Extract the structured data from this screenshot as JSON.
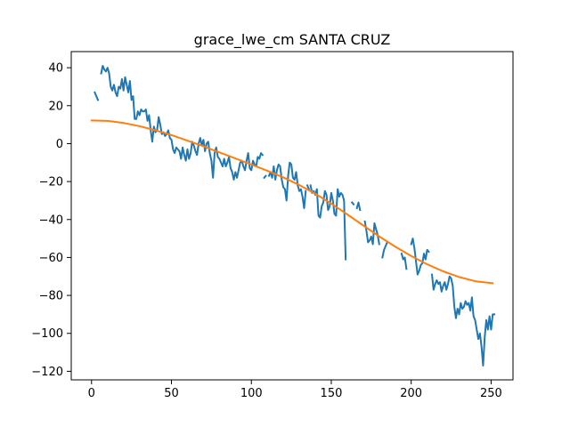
{
  "chart_data": {
    "type": "line",
    "title": "grace_lwe_cm SANTA CRUZ",
    "xlabel": "",
    "ylabel": "",
    "xlim": [
      -12.7,
      263.7
    ],
    "ylim": [
      -124.5,
      48.5
    ],
    "xticks": [
      0,
      50,
      100,
      150,
      200,
      250
    ],
    "yticks": [
      -120,
      -100,
      -80,
      -60,
      -40,
      -20,
      0,
      20,
      40
    ],
    "grid": false,
    "legend": "none",
    "series": [
      {
        "color": "#1f77b4",
        "segments": [
          [
            [
              2,
              27
            ],
            [
              4,
              23
            ]
          ],
          [
            [
              6,
              37
            ],
            [
              7,
              41
            ],
            [
              8,
              39
            ],
            [
              9,
              38
            ],
            [
              10,
              40
            ],
            [
              11,
              37
            ],
            [
              12,
              30
            ],
            [
              13,
              28
            ],
            [
              14,
              31
            ],
            [
              15,
              27
            ],
            [
              16,
              25
            ],
            [
              17,
              30
            ],
            [
              18,
              29
            ],
            [
              19,
              34
            ],
            [
              20,
              28
            ],
            [
              21,
              35
            ],
            [
              22,
              31
            ],
            [
              23,
              27
            ],
            [
              24,
              33
            ],
            [
              25,
              23
            ],
            [
              26,
              25
            ],
            [
              27,
              13
            ],
            [
              28,
              13
            ],
            [
              29,
              17
            ],
            [
              30,
              15
            ],
            [
              31,
              18
            ],
            [
              32,
              17
            ],
            [
              33,
              17
            ],
            [
              34,
              18
            ],
            [
              35,
              12
            ],
            [
              36,
              15
            ],
            [
              37,
              7
            ],
            [
              38,
              1
            ],
            [
              39,
              9
            ],
            [
              40,
              6
            ],
            [
              41,
              7
            ],
            [
              42,
              14
            ],
            [
              43,
              10
            ],
            [
              44,
              5
            ],
            [
              45,
              6
            ],
            [
              46,
              4
            ],
            [
              47,
              5
            ],
            [
              48,
              7
            ],
            [
              49,
              3
            ],
            [
              50,
              2
            ],
            [
              51,
              -3
            ],
            [
              52,
              -5
            ],
            [
              53,
              -2
            ],
            [
              54,
              -3
            ],
            [
              55,
              -4
            ],
            [
              56,
              -8
            ],
            [
              57,
              -2
            ],
            [
              58,
              -6
            ],
            [
              59,
              -9
            ],
            [
              60,
              -3
            ],
            [
              61,
              -8
            ],
            [
              62,
              -5
            ],
            [
              63,
              1
            ],
            [
              64,
              -1
            ],
            [
              65,
              -4
            ],
            [
              66,
              -6
            ],
            [
              67,
              0
            ],
            [
              68,
              3
            ],
            [
              69,
              -1
            ],
            [
              70,
              2
            ],
            [
              71,
              -4
            ],
            [
              72,
              0
            ],
            [
              73,
              1
            ],
            [
              74,
              -5
            ],
            [
              75,
              -9
            ],
            [
              76,
              -18
            ],
            [
              77,
              -5
            ],
            [
              78,
              -2
            ],
            [
              79,
              -7
            ],
            [
              80,
              -8
            ],
            [
              81,
              -10
            ],
            [
              82,
              -12
            ],
            [
              83,
              -8
            ],
            [
              84,
              -12
            ],
            [
              85,
              -10
            ],
            [
              86,
              -7
            ],
            [
              87,
              -13
            ],
            [
              88,
              -15
            ],
            [
              89,
              -19
            ],
            [
              90,
              -15
            ],
            [
              91,
              -18
            ],
            [
              92,
              -14
            ],
            [
              93,
              -10
            ],
            [
              94,
              -9
            ],
            [
              95,
              -12
            ],
            [
              96,
              -14
            ],
            [
              97,
              -9
            ],
            [
              98,
              -5
            ],
            [
              99,
              -13
            ],
            [
              100,
              -14
            ],
            [
              101,
              -9
            ],
            [
              102,
              -11
            ],
            [
              103,
              -12
            ],
            [
              104,
              -7
            ],
            [
              105,
              -8
            ],
            [
              106,
              -5
            ],
            [
              107,
              -6
            ]
          ],
          [
            [
              108,
              -18
            ],
            [
              109,
              -17
            ]
          ],
          [
            [
              111,
              -17
            ],
            [
              112,
              -15
            ],
            [
              113,
              -18
            ],
            [
              114,
              -12
            ],
            [
              115,
              -19
            ],
            [
              116,
              -14
            ],
            [
              117,
              -11
            ],
            [
              118,
              -12
            ],
            [
              119,
              -19
            ],
            [
              120,
              -23
            ],
            [
              121,
              -24
            ],
            [
              122,
              -30
            ],
            [
              123,
              -17
            ],
            [
              124,
              -10
            ],
            [
              125,
              -11
            ],
            [
              126,
              -18
            ],
            [
              127,
              -19
            ],
            [
              128,
              -15
            ],
            [
              129,
              -22
            ],
            [
              130,
              -25
            ],
            [
              131,
              -24
            ],
            [
              132,
              -28
            ],
            [
              133,
              -34
            ],
            [
              134,
              -25
            ]
          ],
          [
            [
              135,
              -22
            ],
            [
              136,
              -24
            ]
          ],
          [
            [
              137,
              -22
            ],
            [
              138,
              -26
            ],
            [
              139,
              -25
            ],
            [
              140,
              -27
            ],
            [
              141,
              -24
            ],
            [
              142,
              -38
            ],
            [
              143,
              -39
            ],
            [
              144,
              -33
            ],
            [
              145,
              -31
            ],
            [
              146,
              -25
            ],
            [
              147,
              -27
            ],
            [
              148,
              -35
            ],
            [
              149,
              -33
            ],
            [
              150,
              -26
            ],
            [
              151,
              -30
            ],
            [
              152,
              -37
            ],
            [
              153,
              -38
            ],
            [
              154,
              -24
            ],
            [
              155,
              -28
            ],
            [
              156,
              -26
            ],
            [
              157,
              -27
            ],
            [
              158,
              -30
            ],
            [
              159,
              -61
            ]
          ],
          [
            [
              163,
              -31
            ],
            [
              164,
              -32
            ]
          ],
          [
            [
              166,
              -34
            ],
            [
              167,
              -31
            ],
            [
              168,
              -35
            ]
          ],
          [
            [
              171,
              -41
            ],
            [
              172,
              -46
            ],
            [
              173,
              -52
            ],
            [
              174,
              -51
            ],
            [
              175,
              -49
            ],
            [
              176,
              -53
            ],
            [
              177,
              -42
            ],
            [
              178,
              -45
            ],
            [
              179,
              -48
            ],
            [
              180,
              -53
            ]
          ],
          [
            [
              182,
              -60
            ],
            [
              183,
              -56
            ],
            [
              184,
              -54
            ],
            [
              185,
              -52
            ]
          ],
          [
            [
              194,
              -58
            ],
            [
              195,
              -61
            ],
            [
              196,
              -60
            ],
            [
              197,
              -66
            ]
          ],
          [
            [
              200,
              -53
            ],
            [
              201,
              -50
            ],
            [
              202,
              -55
            ],
            [
              203,
              -62
            ],
            [
              204,
              -69
            ],
            [
              205,
              -67
            ],
            [
              206,
              -64
            ],
            [
              207,
              -63
            ],
            [
              208,
              -58
            ],
            [
              209,
              -61
            ],
            [
              210,
              -56
            ],
            [
              211,
              -57
            ]
          ],
          [
            [
              213,
              -69
            ],
            [
              214,
              -77
            ],
            [
              215,
              -74
            ],
            [
              216,
              -72
            ],
            [
              217,
              -74
            ],
            [
              218,
              -73
            ],
            [
              219,
              -78
            ],
            [
              220,
              -75
            ],
            [
              221,
              -73
            ],
            [
              222,
              -77
            ],
            [
              223,
              -74
            ],
            [
              224,
              -70
            ],
            [
              225,
              -71
            ],
            [
              226,
              -75
            ],
            [
              227,
              -86
            ],
            [
              228,
              -92
            ],
            [
              229,
              -87
            ],
            [
              230,
              -90
            ],
            [
              231,
              -84
            ],
            [
              232,
              -87
            ],
            [
              233,
              -86
            ],
            [
              234,
              -83
            ],
            [
              235,
              -85
            ],
            [
              236,
              -84
            ],
            [
              237,
              -88
            ],
            [
              238,
              -81
            ],
            [
              239,
              -91
            ],
            [
              240,
              -93
            ],
            [
              241,
              -98
            ],
            [
              242,
              -103
            ],
            [
              243,
              -100
            ],
            [
              244,
              -107
            ],
            [
              245,
              -117
            ],
            [
              246,
              -102
            ],
            [
              247,
              -93
            ],
            [
              248,
              -98
            ],
            [
              249,
              -91
            ],
            [
              250,
              -98
            ],
            [
              251,
              -90
            ],
            [
              252,
              -90
            ]
          ]
        ]
      },
      {
        "color": "#ff7f0e",
        "points": [
          [
            0,
            12.2
          ],
          [
            10,
            12.0
          ],
          [
            20,
            10.9
          ],
          [
            30,
            9.2
          ],
          [
            40,
            7.0
          ],
          [
            50,
            4.5
          ],
          [
            60,
            1.6
          ],
          [
            70,
            -1.4
          ],
          [
            80,
            -4.6
          ],
          [
            90,
            -7.8
          ],
          [
            100,
            -11.0
          ],
          [
            110,
            -14.3
          ],
          [
            120,
            -17.8
          ],
          [
            130,
            -21.8
          ],
          [
            140,
            -26.4
          ],
          [
            150,
            -31.6
          ],
          [
            160,
            -37.3
          ],
          [
            170,
            -43.1
          ],
          [
            180,
            -48.9
          ],
          [
            190,
            -54.3
          ],
          [
            200,
            -59.2
          ],
          [
            210,
            -63.6
          ],
          [
            220,
            -67.3
          ],
          [
            230,
            -70.3
          ],
          [
            240,
            -72.5
          ],
          [
            251,
            -73.6
          ]
        ]
      }
    ]
  }
}
